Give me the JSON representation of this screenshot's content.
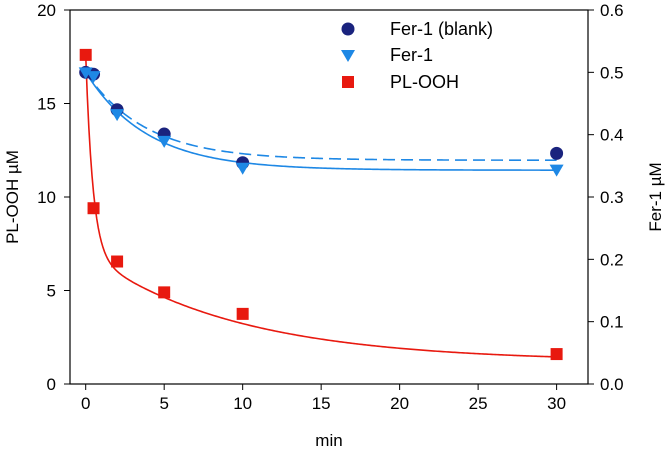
{
  "chart_data": {
    "type": "scatter",
    "title": "",
    "xlabel": "min",
    "ylabel_left": "PL-OOH µM",
    "ylabel_right": "Fer-1  µM",
    "xlim": [
      -1,
      32
    ],
    "ylim_left": [
      0,
      20
    ],
    "ylim_right": [
      0,
      0.6
    ],
    "x_ticks": [
      0,
      5,
      10,
      15,
      20,
      25,
      30
    ],
    "y_left_ticks": [
      0,
      5,
      10,
      15,
      20
    ],
    "y_left_tick_labels": [
      "0",
      "5",
      "10",
      "15",
      "20"
    ],
    "y_right_ticks": [
      0.0,
      0.1,
      0.2,
      0.3,
      0.4,
      0.5,
      0.6
    ],
    "y_right_tick_labels": [
      "0.0",
      "0.1",
      "0.2",
      "0.3",
      "0.4",
      "0.5",
      "0.6"
    ],
    "grid": false,
    "legend_position": "top-right",
    "series": [
      {
        "name": "Fer-1 (blank)",
        "axis": "right",
        "marker": "circle",
        "color": "#1a237e",
        "x": [
          0,
          0.5,
          2,
          5,
          10,
          30
        ],
        "y": [
          0.5,
          0.497,
          0.44,
          0.401,
          0.355,
          0.37
        ],
        "fit": {
          "style": "dashed",
          "color": "#1e88e5",
          "form": "a + b*exp(-k*x)",
          "a": 0.359,
          "b": 0.141,
          "k": 0.26
        }
      },
      {
        "name": "Fer-1",
        "axis": "right",
        "marker": "triangle-down",
        "color": "#1e88e5",
        "x": [
          0,
          0.5,
          2,
          5,
          10,
          30
        ],
        "y": [
          0.5,
          0.494,
          0.433,
          0.39,
          0.347,
          0.344
        ],
        "fit": {
          "style": "solid",
          "color": "#1e88e5",
          "form": "a + b*exp(-k*x)",
          "a": 0.343,
          "b": 0.157,
          "k": 0.255
        }
      },
      {
        "name": "PL-OOH",
        "axis": "left",
        "marker": "square",
        "color": "#e8190f",
        "x": [
          0,
          0.5,
          2,
          5,
          10,
          30
        ],
        "y": [
          17.6,
          9.4,
          6.55,
          4.9,
          3.75,
          1.6
        ],
        "fit": {
          "style": "solid",
          "color": "#e8190f",
          "form": "a*exp(-k1*x) + b*exp(-k2*x) + c",
          "a": 10.6,
          "k1": 2.2,
          "b": 5.8,
          "k2": 0.105,
          "c": 1.2
        }
      }
    ]
  }
}
